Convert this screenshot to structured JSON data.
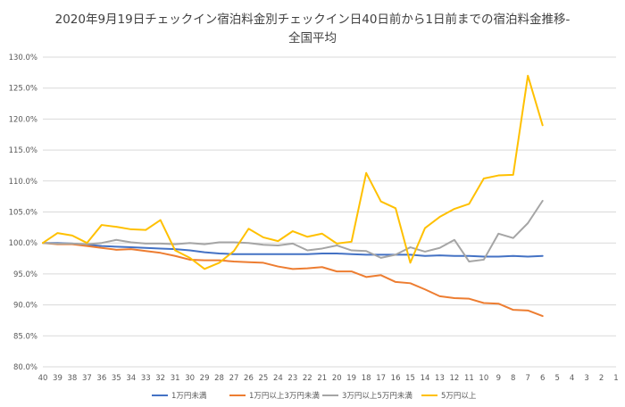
{
  "chart_data": {
    "type": "line",
    "title_line1": "2020年9月19日チェックイン宿泊料金別チェックイン日40日前から1日前までの宿泊料金推移-",
    "title_line2": "全国平均",
    "x": [
      "40",
      "39",
      "38",
      "37",
      "36",
      "35",
      "34",
      "33",
      "32",
      "31",
      "30",
      "29",
      "28",
      "27",
      "26",
      "25",
      "24",
      "23",
      "22",
      "21",
      "20",
      "19",
      "18",
      "17",
      "16",
      "15",
      "14",
      "13",
      "12",
      "11",
      "10",
      "9",
      "8",
      "7",
      "6",
      "5",
      "4",
      "3",
      "2",
      "1"
    ],
    "yticks": [
      "80.0%",
      "85.0%",
      "90.0%",
      "95.0%",
      "100.0%",
      "105.0%",
      "110.0%",
      "115.0%",
      "120.0%",
      "125.0%",
      "130.0%"
    ],
    "ylim": [
      80,
      130
    ],
    "grid": true,
    "legend_position": "bottom",
    "series": [
      {
        "name": "1万円未満",
        "color": "#4472C4",
        "values": [
          100.0,
          100.0,
          99.9,
          99.7,
          99.5,
          99.4,
          99.3,
          99.2,
          99.1,
          99.0,
          98.8,
          98.5,
          98.3,
          98.2,
          98.2,
          98.2,
          98.2,
          98.2,
          98.2,
          98.3,
          98.3,
          98.2,
          98.1,
          98.1,
          98.1,
          98.1,
          97.9,
          98.0,
          97.9,
          97.9,
          97.8,
          97.8,
          97.9,
          97.8,
          97.9,
          null,
          null,
          null,
          null,
          null
        ]
      },
      {
        "name": "1万円以上3万円未満",
        "color": "#ED7D31",
        "values": [
          100.0,
          99.8,
          99.8,
          99.5,
          99.2,
          98.9,
          99.0,
          98.7,
          98.4,
          97.9,
          97.3,
          97.2,
          97.2,
          97.0,
          96.9,
          96.8,
          96.2,
          95.8,
          95.9,
          96.1,
          95.4,
          95.4,
          94.5,
          94.8,
          93.7,
          93.5,
          92.5,
          91.4,
          91.1,
          91.0,
          90.3,
          90.2,
          89.2,
          89.1,
          88.2,
          null,
          null,
          null,
          null,
          null
        ]
      },
      {
        "name": "3万円以上5万円未満",
        "color": "#A5A5A5",
        "values": [
          100.0,
          99.9,
          99.9,
          99.8,
          100.0,
          100.5,
          100.1,
          99.9,
          99.9,
          99.8,
          100.0,
          99.8,
          100.1,
          100.1,
          100.0,
          99.7,
          99.6,
          99.9,
          98.8,
          99.1,
          99.6,
          98.8,
          98.7,
          97.6,
          98.1,
          99.3,
          98.6,
          99.2,
          100.5,
          97.0,
          97.3,
          101.5,
          100.8,
          103.2,
          106.8,
          null,
          null,
          null,
          null,
          null
        ]
      },
      {
        "name": "5万円以上",
        "color": "#FFC000",
        "values": [
          100.0,
          101.6,
          101.2,
          100.0,
          102.9,
          102.6,
          102.2,
          102.1,
          103.7,
          98.8,
          97.6,
          95.8,
          96.8,
          98.7,
          102.3,
          100.9,
          100.3,
          101.9,
          101.0,
          101.5,
          99.9,
          100.2,
          111.3,
          106.7,
          105.6,
          96.8,
          102.4,
          104.2,
          105.5,
          106.3,
          110.4,
          110.9,
          111.0,
          127.0,
          119.0,
          null,
          null,
          null,
          null,
          null
        ]
      }
    ]
  }
}
